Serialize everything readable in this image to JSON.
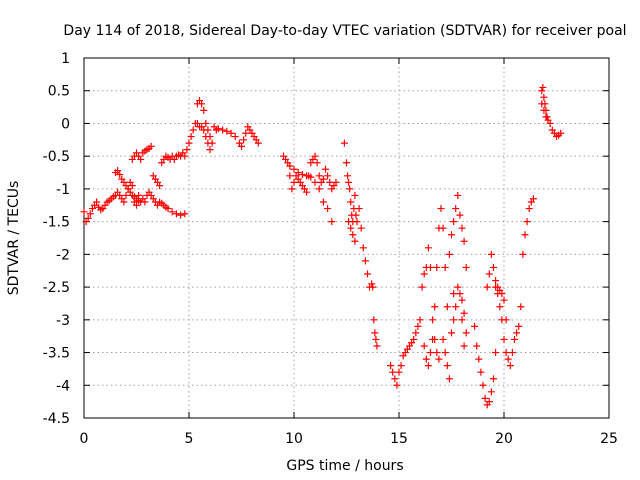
{
  "chart_data": {
    "type": "scatter",
    "title": "Day 114 of 2018, Sidereal Day-to-day VTEC variation (SDTVAR) for receiver poal",
    "xlabel": "GPS time / hours",
    "ylabel": "SDTVAR / TECUs",
    "xlim": [
      0,
      25
    ],
    "ylim": [
      -4.5,
      1
    ],
    "xticks": [
      0,
      5,
      10,
      15,
      20,
      25
    ],
    "xtick_labels": [
      "0",
      "5",
      "10",
      "15",
      "20",
      "25"
    ],
    "yticks": [
      1,
      0.5,
      0,
      -0.5,
      -1,
      -1.5,
      -2,
      -2.5,
      -3,
      -3.5,
      -4,
      -4.5
    ],
    "ytick_labels": [
      "1",
      "0.5",
      "0",
      "-0.5",
      "-1",
      "-1.5",
      "-2",
      "-2.5",
      "-3",
      "-3.5",
      "-4",
      "-4.5"
    ],
    "grid": true,
    "marker": "+",
    "series": [
      {
        "name": "SDTVAR",
        "color": "#ff0000",
        "points": [
          [
            0,
            -1.35
          ],
          [
            0.1,
            -1.5
          ],
          [
            0.2,
            -1.45
          ],
          [
            0.3,
            -1.38
          ],
          [
            0.4,
            -1.3
          ],
          [
            0.5,
            -1.25
          ],
          [
            0.6,
            -1.2
          ],
          [
            0.7,
            -1.28
          ],
          [
            0.8,
            -1.32
          ],
          [
            0.9,
            -1.3
          ],
          [
            1.0,
            -1.25
          ],
          [
            1.1,
            -1.2
          ],
          [
            1.2,
            -1.18
          ],
          [
            1.3,
            -1.15
          ],
          [
            1.4,
            -1.12
          ],
          [
            1.5,
            -1.1
          ],
          [
            1.6,
            -1.05
          ],
          [
            1.7,
            -1.1
          ],
          [
            1.8,
            -1.15
          ],
          [
            1.9,
            -1.2
          ],
          [
            2.0,
            -1.1
          ],
          [
            2.1,
            -1.0
          ],
          [
            2.2,
            -0.9
          ],
          [
            2.3,
            -0.95
          ],
          [
            2.4,
            -1.2
          ],
          [
            2.5,
            -1.25
          ],
          [
            2.6,
            -1.1
          ],
          [
            1.5,
            -0.75
          ],
          [
            1.6,
            -0.72
          ],
          [
            1.7,
            -0.78
          ],
          [
            1.8,
            -0.85
          ],
          [
            1.9,
            -0.9
          ],
          [
            2.0,
            -0.95
          ],
          [
            2.1,
            -1.0
          ],
          [
            2.2,
            -1.05
          ],
          [
            2.3,
            -1.1
          ],
          [
            2.4,
            -1.12
          ],
          [
            2.5,
            -1.15
          ],
          [
            2.6,
            -1.18
          ],
          [
            2.7,
            -1.2
          ],
          [
            2.8,
            -1.15
          ],
          [
            2.9,
            -1.2
          ],
          [
            3.0,
            -1.1
          ],
          [
            3.1,
            -1.05
          ],
          [
            3.2,
            -1.1
          ],
          [
            2.3,
            -0.55
          ],
          [
            2.4,
            -0.5
          ],
          [
            2.5,
            -0.45
          ],
          [
            2.6,
            -0.5
          ],
          [
            2.7,
            -0.55
          ],
          [
            2.8,
            -0.45
          ],
          [
            2.9,
            -0.42
          ],
          [
            3.0,
            -0.4
          ],
          [
            3.1,
            -0.38
          ],
          [
            3.2,
            -0.35
          ],
          [
            3.3,
            -0.8
          ],
          [
            3.4,
            -0.85
          ],
          [
            3.5,
            -0.9
          ],
          [
            3.6,
            -0.95
          ],
          [
            3.7,
            -0.6
          ],
          [
            3.8,
            -0.55
          ],
          [
            3.9,
            -0.5
          ],
          [
            4.0,
            -0.52
          ],
          [
            4.1,
            -0.55
          ],
          [
            4.2,
            -0.5
          ],
          [
            4.3,
            -0.55
          ],
          [
            4.4,
            -0.5
          ],
          [
            4.5,
            -0.48
          ],
          [
            4.6,
            -0.5
          ],
          [
            4.7,
            -0.45
          ],
          [
            4.8,
            -0.5
          ],
          [
            3.3,
            -1.15
          ],
          [
            3.4,
            -1.2
          ],
          [
            3.5,
            -1.25
          ],
          [
            3.6,
            -1.2
          ],
          [
            3.7,
            -1.22
          ],
          [
            3.8,
            -1.25
          ],
          [
            3.9,
            -1.28
          ],
          [
            4.0,
            -1.3
          ],
          [
            4.2,
            -1.35
          ],
          [
            4.4,
            -1.38
          ],
          [
            4.6,
            -1.4
          ],
          [
            4.8,
            -1.38
          ],
          [
            4.9,
            -0.4
          ],
          [
            5.0,
            -0.3
          ],
          [
            5.1,
            -0.2
          ],
          [
            5.2,
            -0.1
          ],
          [
            5.3,
            0.0
          ],
          [
            5.4,
            0.3
          ],
          [
            5.5,
            0.35
          ],
          [
            5.6,
            0.3
          ],
          [
            5.7,
            0.2
          ],
          [
            5.8,
            0.0
          ],
          [
            5.9,
            -0.1
          ],
          [
            6.0,
            -0.2
          ],
          [
            6.1,
            -0.3
          ],
          [
            6.2,
            -0.05
          ],
          [
            6.3,
            -0.1
          ],
          [
            6.4,
            -0.08
          ],
          [
            6.6,
            -0.1
          ],
          [
            6.8,
            -0.12
          ],
          [
            7.0,
            -0.15
          ],
          [
            7.2,
            -0.2
          ],
          [
            7.4,
            -0.3
          ],
          [
            7.5,
            -0.35
          ],
          [
            7.6,
            -0.25
          ],
          [
            7.7,
            -0.15
          ],
          [
            7.8,
            -0.05
          ],
          [
            7.9,
            -0.1
          ],
          [
            8.0,
            -0.15
          ],
          [
            8.1,
            -0.2
          ],
          [
            8.2,
            -0.25
          ],
          [
            8.3,
            -0.3
          ],
          [
            5.4,
            0.0
          ],
          [
            5.5,
            -0.05
          ],
          [
            5.6,
            -0.05
          ],
          [
            5.7,
            -0.1
          ],
          [
            5.8,
            -0.2
          ],
          [
            5.9,
            -0.3
          ],
          [
            6.0,
            -0.4
          ],
          [
            9.5,
            -0.5
          ],
          [
            9.6,
            -0.55
          ],
          [
            9.7,
            -0.6
          ],
          [
            9.8,
            -0.8
          ],
          [
            9.9,
            -1.0
          ],
          [
            10.0,
            -0.9
          ],
          [
            10.1,
            -0.8
          ],
          [
            10.2,
            -0.85
          ],
          [
            10.3,
            -0.9
          ],
          [
            10.4,
            -0.95
          ],
          [
            10.5,
            -1.0
          ],
          [
            10.6,
            -1.05
          ],
          [
            10.7,
            -0.8
          ],
          [
            10.8,
            -0.6
          ],
          [
            10.9,
            -0.55
          ],
          [
            11.0,
            -0.5
          ],
          [
            11.1,
            -0.6
          ],
          [
            11.2,
            -0.8
          ],
          [
            11.3,
            -0.9
          ],
          [
            11.4,
            -0.85
          ],
          [
            11.5,
            -0.7
          ],
          [
            11.6,
            -0.8
          ],
          [
            11.7,
            -0.9
          ],
          [
            11.8,
            -1.0
          ],
          [
            11.9,
            -0.95
          ],
          [
            12.0,
            -0.9
          ],
          [
            9.8,
            -0.65
          ],
          [
            10.0,
            -0.7
          ],
          [
            10.2,
            -0.75
          ],
          [
            10.4,
            -0.78
          ],
          [
            10.6,
            -0.8
          ],
          [
            10.8,
            -0.82
          ],
          [
            11.0,
            -0.9
          ],
          [
            11.2,
            -1.0
          ],
          [
            11.4,
            -1.2
          ],
          [
            11.6,
            -1.3
          ],
          [
            11.8,
            -1.5
          ],
          [
            12.4,
            -0.3
          ],
          [
            12.5,
            -0.6
          ],
          [
            12.55,
            -0.8
          ],
          [
            12.6,
            -0.9
          ],
          [
            12.65,
            -1.0
          ],
          [
            12.7,
            -1.2
          ],
          [
            12.75,
            -1.4
          ],
          [
            12.8,
            -1.5
          ],
          [
            12.85,
            -1.3
          ],
          [
            12.9,
            -1.1
          ],
          [
            12.95,
            -1.4
          ],
          [
            12.6,
            -1.5
          ],
          [
            12.7,
            -1.6
          ],
          [
            12.8,
            -1.7
          ],
          [
            12.9,
            -1.8
          ],
          [
            13.0,
            -1.5
          ],
          [
            13.1,
            -1.3
          ],
          [
            13.2,
            -1.6
          ],
          [
            13.3,
            -1.9
          ],
          [
            13.4,
            -2.1
          ],
          [
            13.5,
            -2.3
          ],
          [
            13.6,
            -2.5
          ],
          [
            13.7,
            -2.45
          ],
          [
            13.75,
            -2.5
          ],
          [
            13.8,
            -3.0
          ],
          [
            13.85,
            -3.2
          ],
          [
            13.9,
            -3.3
          ],
          [
            13.95,
            -3.4
          ],
          [
            14.6,
            -3.7
          ],
          [
            14.7,
            -3.8
          ],
          [
            14.8,
            -3.9
          ],
          [
            14.9,
            -4.0
          ],
          [
            15.0,
            -3.8
          ],
          [
            15.1,
            -3.7
          ],
          [
            15.2,
            -3.55
          ],
          [
            15.3,
            -3.5
          ],
          [
            15.4,
            -3.45
          ],
          [
            15.5,
            -3.4
          ],
          [
            15.6,
            -3.35
          ],
          [
            15.7,
            -3.3
          ],
          [
            15.8,
            -3.2
          ],
          [
            15.9,
            -3.1
          ],
          [
            16.0,
            -3.0
          ],
          [
            16.1,
            -2.5
          ],
          [
            16.2,
            -2.3
          ],
          [
            16.3,
            -2.2
          ],
          [
            16.4,
            -1.9
          ],
          [
            16.5,
            -2.2
          ],
          [
            16.6,
            -3.0
          ],
          [
            16.7,
            -3.3
          ],
          [
            16.8,
            -3.5
          ],
          [
            16.9,
            -3.6
          ],
          [
            16.2,
            -3.4
          ],
          [
            16.3,
            -3.6
          ],
          [
            16.4,
            -3.7
          ],
          [
            16.5,
            -3.5
          ],
          [
            16.6,
            -3.3
          ],
          [
            16.7,
            -2.8
          ],
          [
            16.8,
            -2.2
          ],
          [
            16.9,
            -1.6
          ],
          [
            17.0,
            -1.3
          ],
          [
            17.1,
            -1.6
          ],
          [
            17.2,
            -2.2
          ],
          [
            17.3,
            -2.8
          ],
          [
            17.1,
            -3.3
          ],
          [
            17.2,
            -3.5
          ],
          [
            17.3,
            -3.7
          ],
          [
            17.4,
            -3.9
          ],
          [
            17.5,
            -3.2
          ],
          [
            17.6,
            -3.0
          ],
          [
            17.4,
            -2.0
          ],
          [
            17.5,
            -1.7
          ],
          [
            17.6,
            -1.5
          ],
          [
            17.7,
            -1.3
          ],
          [
            17.8,
            -1.1
          ],
          [
            17.9,
            -1.4
          ],
          [
            18.0,
            -1.6
          ],
          [
            18.1,
            -1.8
          ],
          [
            18.2,
            -2.2
          ],
          [
            18.0,
            -2.7
          ],
          [
            18.1,
            -2.9
          ],
          [
            18.2,
            -3.2
          ],
          [
            17.6,
            -2.6
          ],
          [
            17.7,
            -2.8
          ],
          [
            17.8,
            -2.5
          ],
          [
            17.9,
            -2.6
          ],
          [
            18.0,
            -3.0
          ],
          [
            18.1,
            -3.4
          ],
          [
            18.6,
            -3.1
          ],
          [
            18.7,
            -3.4
          ],
          [
            18.8,
            -3.6
          ],
          [
            18.9,
            -3.8
          ],
          [
            19.0,
            -4.0
          ],
          [
            19.1,
            -4.2
          ],
          [
            19.2,
            -4.3
          ],
          [
            19.3,
            -4.25
          ],
          [
            19.4,
            -4.1
          ],
          [
            19.5,
            -3.9
          ],
          [
            19.6,
            -3.5
          ],
          [
            19.2,
            -2.5
          ],
          [
            19.3,
            -2.3
          ],
          [
            19.4,
            -2.0
          ],
          [
            19.5,
            -2.2
          ],
          [
            19.6,
            -2.5
          ],
          [
            19.7,
            -2.6
          ],
          [
            19.8,
            -2.8
          ],
          [
            19.9,
            -3.0
          ],
          [
            20.0,
            -3.3
          ],
          [
            20.1,
            -3.5
          ],
          [
            20.2,
            -3.6
          ],
          [
            20.3,
            -3.7
          ],
          [
            20.4,
            -3.5
          ],
          [
            20.5,
            -3.3
          ],
          [
            20.6,
            -3.2
          ],
          [
            20.7,
            -3.1
          ],
          [
            20.8,
            -2.8
          ],
          [
            20.9,
            -2.0
          ],
          [
            21.0,
            -1.7
          ],
          [
            21.1,
            -1.5
          ],
          [
            21.2,
            -1.3
          ],
          [
            21.3,
            -1.2
          ],
          [
            21.4,
            -1.15
          ],
          [
            19.6,
            -2.4
          ],
          [
            19.7,
            -2.5
          ],
          [
            19.8,
            -2.55
          ],
          [
            19.9,
            -2.6
          ],
          [
            20.0,
            -2.7
          ],
          [
            20.1,
            -3.0
          ],
          [
            21.8,
            0.5
          ],
          [
            21.85,
            0.55
          ],
          [
            21.9,
            0.4
          ],
          [
            21.95,
            0.3
          ],
          [
            22.0,
            0.2
          ],
          [
            22.05,
            0.1
          ],
          [
            22.1,
            0.05
          ],
          [
            22.2,
            0.0
          ],
          [
            22.3,
            -0.1
          ],
          [
            22.4,
            -0.15
          ],
          [
            22.5,
            -0.2
          ],
          [
            22.6,
            -0.18
          ],
          [
            22.7,
            -0.15
          ],
          [
            21.8,
            0.3
          ],
          [
            21.9,
            0.2
          ],
          [
            22.0,
            0.1
          ]
        ]
      }
    ]
  }
}
